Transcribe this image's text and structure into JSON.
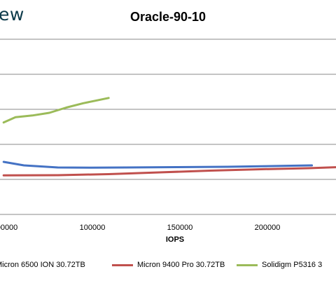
{
  "brand": {
    "text": "ew"
  },
  "chart_data": {
    "type": "line",
    "title": "Oracle-90-10",
    "xlabel": "IOPS",
    "ylabel": "",
    "x_ticks": [
      "00000",
      "100000",
      "150000",
      "200000"
    ],
    "grid": true,
    "legend_position": "bottom",
    "series": [
      {
        "name": "Micron 6500 ION 30.72TB",
        "color": "#4472c4",
        "points": [
          [
            48000,
            30
          ],
          [
            60000,
            28
          ],
          [
            80000,
            26.8
          ],
          [
            100000,
            26.7
          ],
          [
            120000,
            26.8
          ],
          [
            150000,
            27.0
          ],
          [
            180000,
            27.2
          ],
          [
            200000,
            27.5
          ],
          [
            230000,
            28.0
          ]
        ]
      },
      {
        "name": "Micron 9400 Pro 30.72TB",
        "color": "#c0504d",
        "points": [
          [
            48000,
            22.3
          ],
          [
            80000,
            22.4
          ],
          [
            110000,
            23
          ],
          [
            140000,
            24
          ],
          [
            170000,
            25
          ],
          [
            200000,
            25.8
          ],
          [
            228000,
            26.4
          ],
          [
            245000,
            27
          ]
        ]
      },
      {
        "name": "Solidigm P5316 3",
        "color": "#9bbb59",
        "points": [
          [
            48000,
            52.5
          ],
          [
            55000,
            55.5
          ],
          [
            65000,
            56.5
          ],
          [
            75000,
            58
          ],
          [
            85000,
            61
          ],
          [
            95000,
            63.5
          ],
          [
            105000,
            65.5
          ],
          [
            110000,
            66.5
          ]
        ]
      }
    ]
  }
}
